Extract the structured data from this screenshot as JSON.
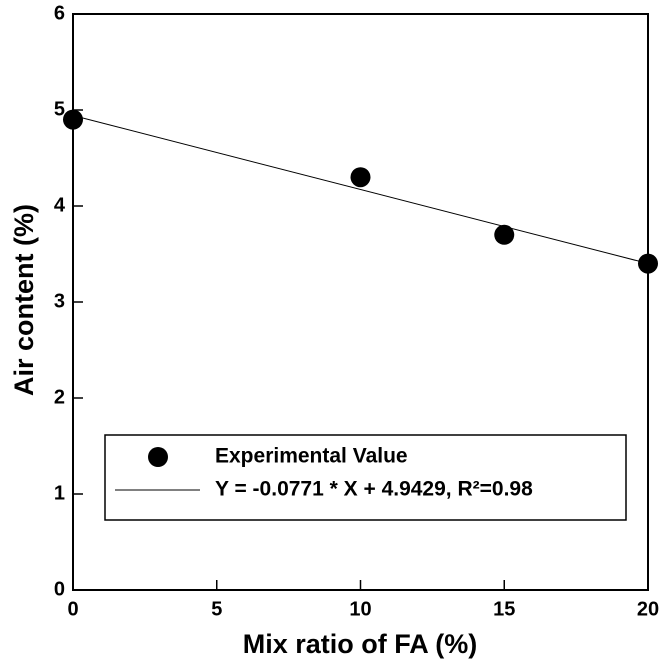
{
  "chart_data": {
    "type": "scatter",
    "x_label": "Mix ratio of FA (%)",
    "y_label": "Air content (%)",
    "xlim": [
      0,
      20
    ],
    "xticks": [
      0,
      5,
      10,
      15,
      20
    ],
    "ylim": [
      0,
      6
    ],
    "yticks": [
      0,
      1,
      2,
      3,
      4,
      5,
      6
    ],
    "series": [
      {
        "name": "Experimental Value",
        "type": "scatter",
        "color": "#000000",
        "x": [
          0,
          10,
          15,
          20
        ],
        "values": [
          4.9,
          4.3,
          3.7,
          3.4
        ]
      },
      {
        "name": "Y = -0.0771 * X + 4.9429, R²=0.98",
        "type": "line",
        "color": "#000000",
        "x": [
          0,
          20
        ],
        "values": [
          4.9429,
          3.4009
        ]
      }
    ]
  }
}
